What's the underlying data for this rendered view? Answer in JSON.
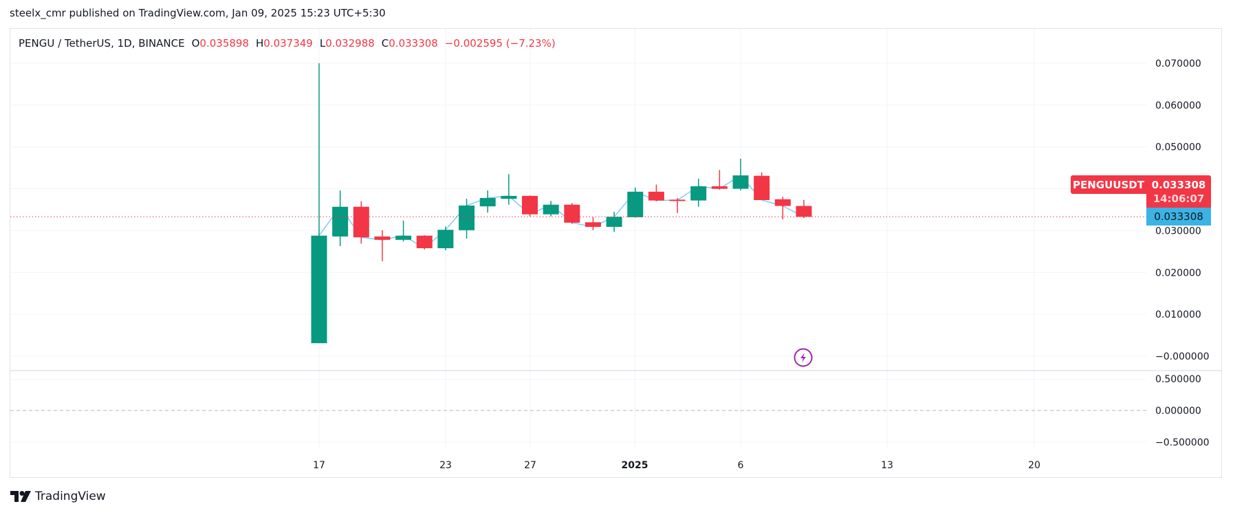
{
  "header": {
    "published_line": "steelx_cmr published on TradingView.com, Jan 09, 2025 15:23 UTC+5:30"
  },
  "legend": {
    "symbol_line": "PENGU / TetherUS, 1D, BINANCE",
    "open_key": "O",
    "open": "0.035898",
    "high_key": "H",
    "high": "0.037349",
    "low_key": "L",
    "low": "0.032988",
    "close_key": "C",
    "close": "0.033308",
    "change": "−0.002595 (−7.23%)"
  },
  "price_badges": {
    "symbol": "PENGUUSDT",
    "price": "0.033308",
    "countdown": "14:06:07",
    "last_price": "0.033308"
  },
  "footer": {
    "logo_text": "TradingView"
  },
  "colors": {
    "up": "#089981",
    "down": "#f23645",
    "close_line": "#7fcdee",
    "grid": "#f0f3fa",
    "price_line": "#f23645",
    "last_price_bg": "#3bb3e4",
    "event_icon": "#9c27b0"
  },
  "chart_data": {
    "type": "candlestick",
    "title": "PENGU / TetherUS, 1D, BINANCE",
    "xlabel": "",
    "ylabel": "",
    "ylim": [
      0,
      0.07
    ],
    "grid": true,
    "y_ticks": [
      "0.070000",
      "0.060000",
      "0.050000",
      "0.030000",
      "0.020000",
      "0.010000",
      "−0.000000"
    ],
    "y_tick_values": [
      0.07,
      0.06,
      0.05,
      0.03,
      0.02,
      0.01,
      0.0
    ],
    "lower_pane_ticks": [
      "0.500000",
      "0.000000",
      "−0.500000"
    ],
    "x_tick_labels": [
      {
        "label": "17",
        "x": 464,
        "bold": false
      },
      {
        "label": "23",
        "x": 648,
        "bold": false
      },
      {
        "label": "27",
        "x": 771,
        "bold": false
      },
      {
        "label": "2025",
        "x": 923,
        "bold": true
      },
      {
        "label": "6",
        "x": 1077,
        "bold": false
      },
      {
        "label": "13",
        "x": 1290,
        "bold": false
      },
      {
        "label": "20",
        "x": 1504,
        "bold": false
      }
    ],
    "candles": [
      {
        "date": "2024-12-17",
        "o": 0.0031,
        "h": 0.07,
        "l": 0.0031,
        "c": 0.0288
      },
      {
        "date": "2024-12-18",
        "o": 0.0286,
        "h": 0.0396,
        "l": 0.0263,
        "c": 0.0357
      },
      {
        "date": "2024-12-19",
        "o": 0.0357,
        "h": 0.037,
        "l": 0.0269,
        "c": 0.0284
      },
      {
        "date": "2024-12-20",
        "o": 0.0286,
        "h": 0.0301,
        "l": 0.0227,
        "c": 0.0278
      },
      {
        "date": "2024-12-21",
        "o": 0.0278,
        "h": 0.0324,
        "l": 0.0274,
        "c": 0.0288
      },
      {
        "date": "2024-12-22",
        "o": 0.0288,
        "h": 0.0289,
        "l": 0.0255,
        "c": 0.0258
      },
      {
        "date": "2024-12-23",
        "o": 0.0258,
        "h": 0.031,
        "l": 0.0253,
        "c": 0.0302
      },
      {
        "date": "2024-12-24",
        "o": 0.0301,
        "h": 0.0376,
        "l": 0.0281,
        "c": 0.036
      },
      {
        "date": "2024-12-25",
        "o": 0.0358,
        "h": 0.0396,
        "l": 0.0343,
        "c": 0.0378
      },
      {
        "date": "2024-12-26",
        "o": 0.0376,
        "h": 0.0435,
        "l": 0.0362,
        "c": 0.0383
      },
      {
        "date": "2024-12-27",
        "o": 0.0383,
        "h": 0.0384,
        "l": 0.0334,
        "c": 0.0339
      },
      {
        "date": "2024-12-28",
        "o": 0.0339,
        "h": 0.0371,
        "l": 0.0334,
        "c": 0.0362
      },
      {
        "date": "2024-12-29",
        "o": 0.0362,
        "h": 0.0366,
        "l": 0.0316,
        "c": 0.0319
      },
      {
        "date": "2024-12-30",
        "o": 0.032,
        "h": 0.0332,
        "l": 0.0301,
        "c": 0.0309
      },
      {
        "date": "2024-12-31",
        "o": 0.0309,
        "h": 0.0345,
        "l": 0.0297,
        "c": 0.0333
      },
      {
        "date": "2025-01-01",
        "o": 0.0332,
        "h": 0.0403,
        "l": 0.0331,
        "c": 0.0393
      },
      {
        "date": "2025-01-02",
        "o": 0.0393,
        "h": 0.041,
        "l": 0.037,
        "c": 0.0372
      },
      {
        "date": "2025-01-03",
        "o": 0.0374,
        "h": 0.0378,
        "l": 0.0342,
        "c": 0.0373
      },
      {
        "date": "2025-01-04",
        "o": 0.0372,
        "h": 0.0424,
        "l": 0.0357,
        "c": 0.0406
      },
      {
        "date": "2025-01-05",
        "o": 0.0406,
        "h": 0.0445,
        "l": 0.0398,
        "c": 0.04
      },
      {
        "date": "2025-01-06",
        "o": 0.04,
        "h": 0.0472,
        "l": 0.0396,
        "c": 0.0432
      },
      {
        "date": "2025-01-07",
        "o": 0.0431,
        "h": 0.0439,
        "l": 0.0373,
        "c": 0.0373
      },
      {
        "date": "2025-01-08",
        "o": 0.0375,
        "h": 0.0381,
        "l": 0.0327,
        "c": 0.0359
      },
      {
        "date": "2025-01-09",
        "o": 0.035898,
        "h": 0.037349,
        "l": 0.032988,
        "c": 0.033308
      }
    ],
    "current_price": 0.033308
  }
}
